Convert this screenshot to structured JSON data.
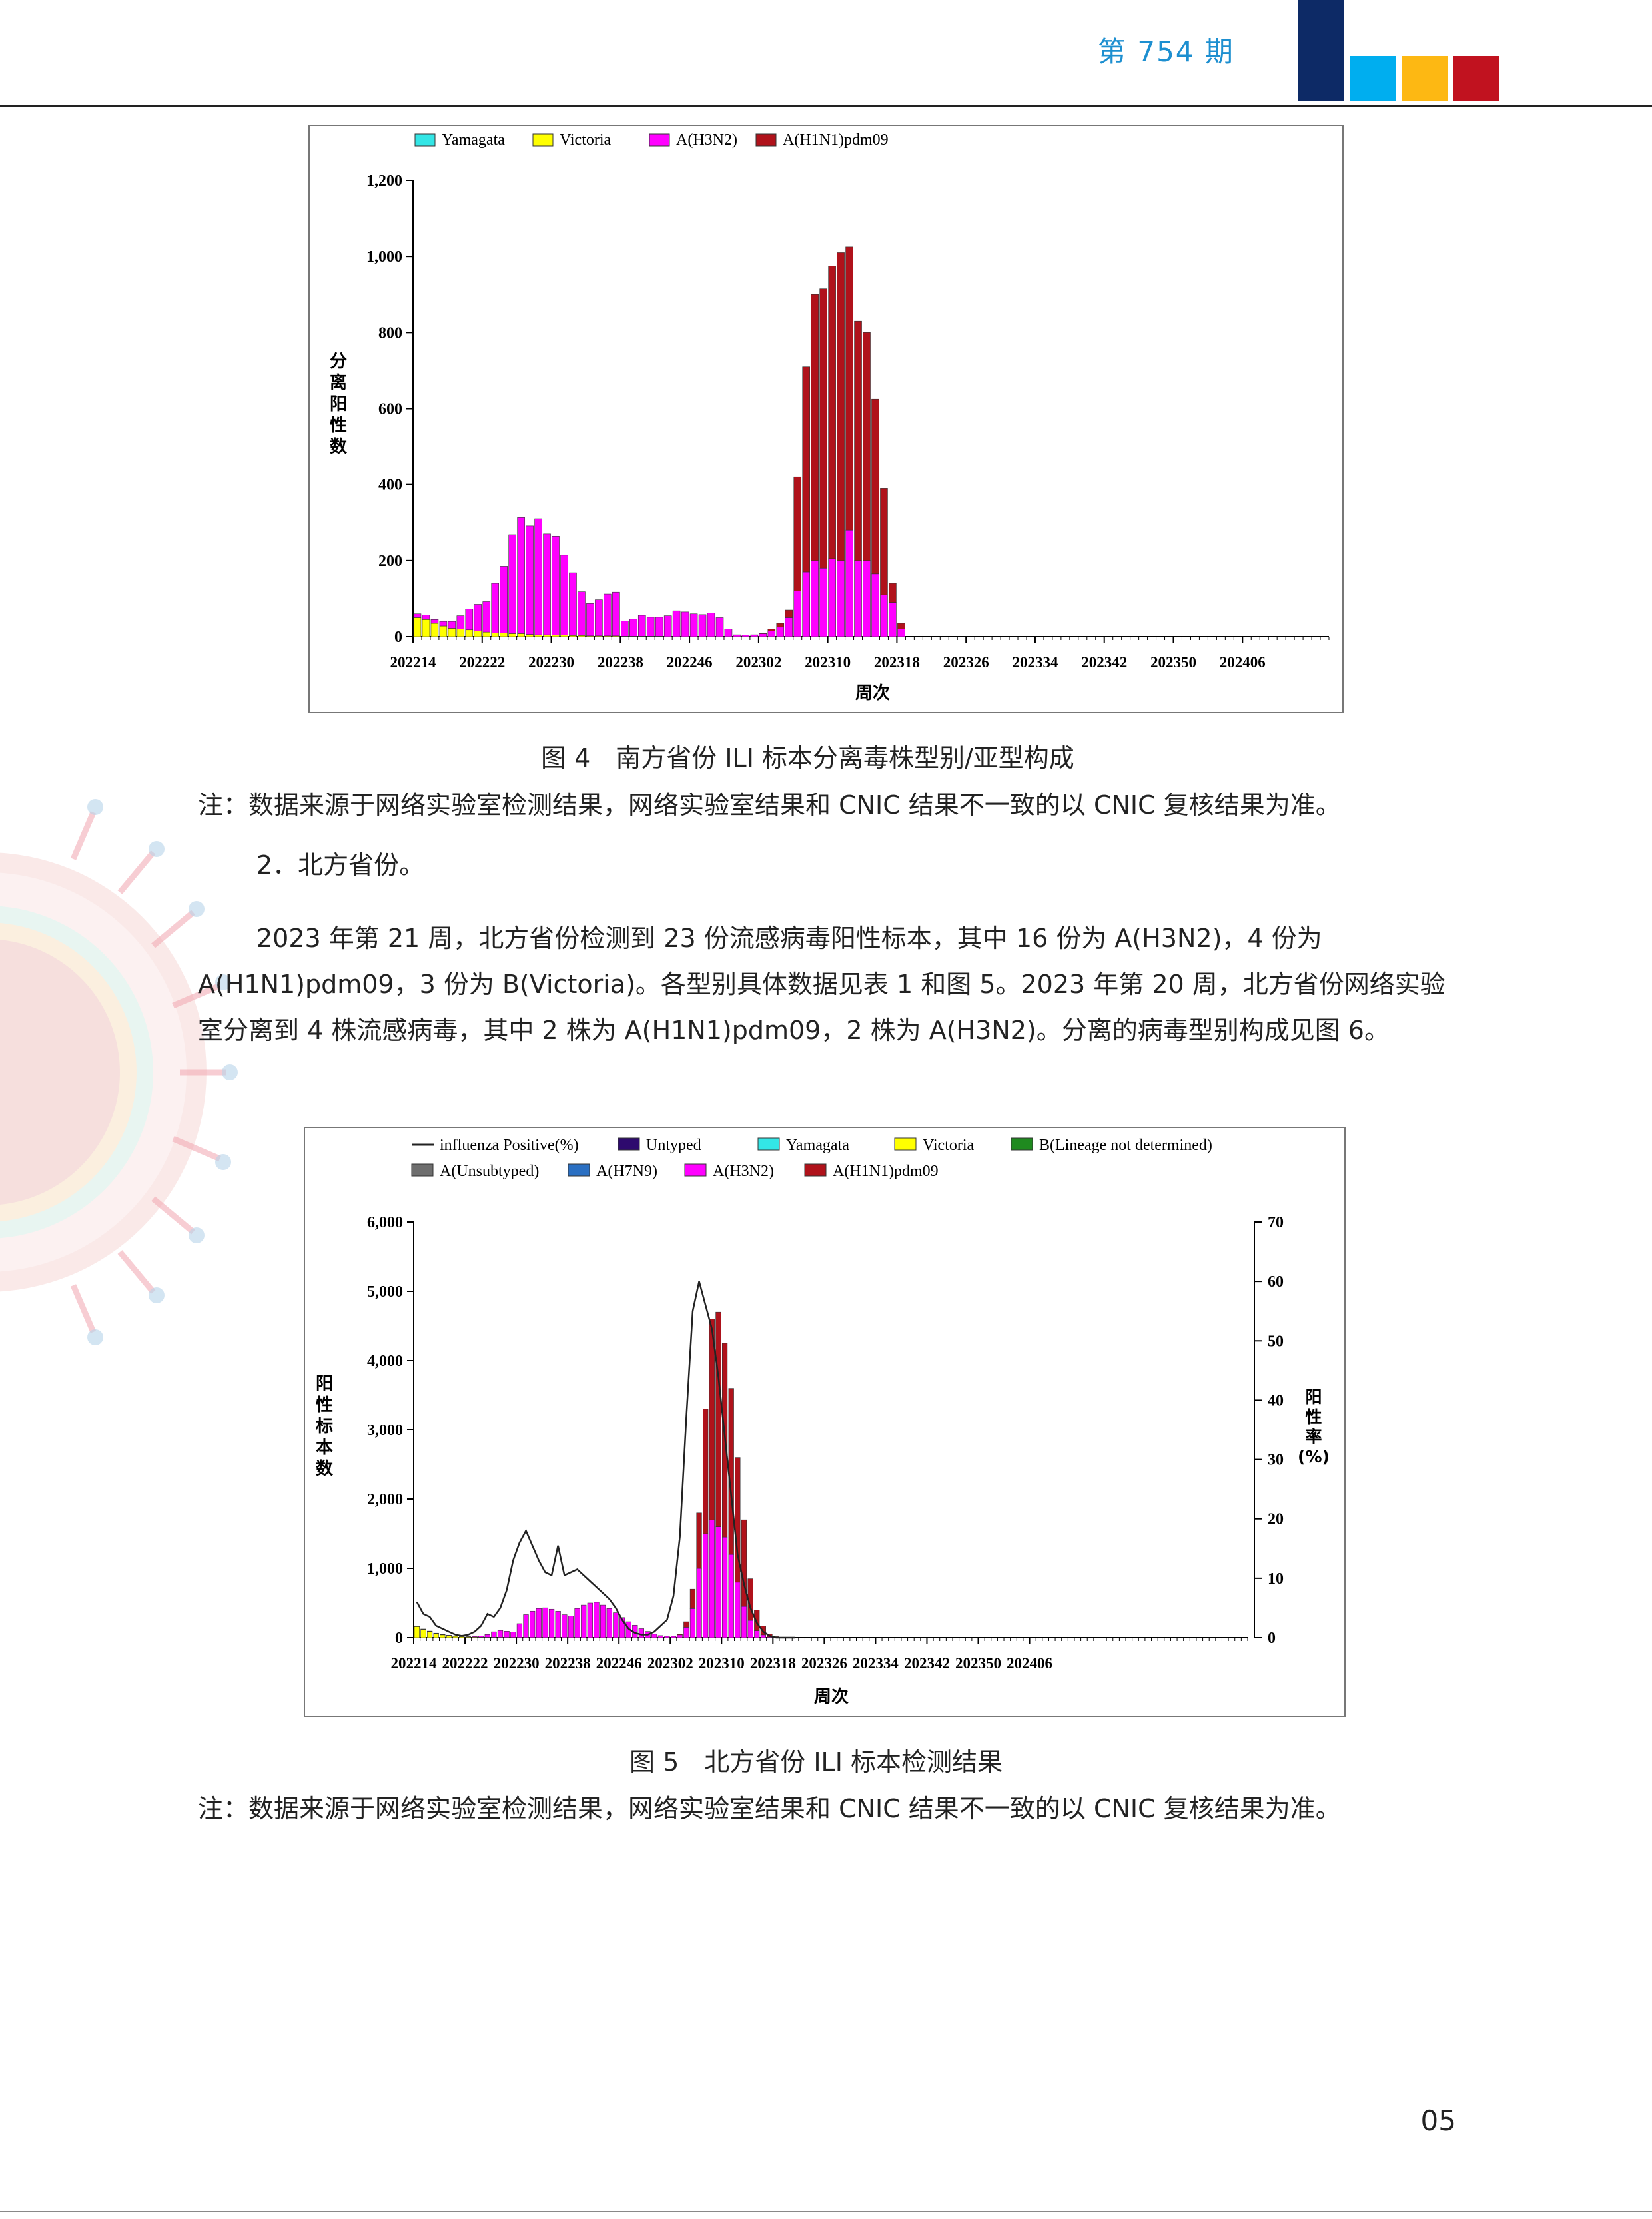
{
  "header": {
    "issue": "第 754 期",
    "colors": [
      "#0d2a66",
      "#00aeef",
      "#fdb813",
      "#c1121f"
    ]
  },
  "figure4": {
    "caption": "图 4　南方省份 ILI 标本分离毒株型别/亚型构成",
    "note": "注：数据来源于网络实验室检测结果，网络实验室结果和 CNIC 结果不一致的以 CNIC 复核结果为准。"
  },
  "section": {
    "heading": "2．北方省份。",
    "paragraph": "2023 年第 21 周，北方省份检测到 23 份流感病毒阳性标本，其中 16 份为 A(H3N2)，4 份为 A(H1N1)pdm09，3 份为 B(Victoria)。各型别具体数据见表 1 和图 5。2023 年第 20 周，北方省份网络实验室分离到 4 株流感病毒，其中 2 株为 A(H1N1)pdm09，2 株为 A(H3N2)。分离的病毒型别构成见图 6。"
  },
  "figure5": {
    "caption": "图 5　北方省份 ILI 标本检测结果",
    "note": "注：数据来源于网络实验室检测结果，网络实验室结果和 CNIC 结果不一致的以 CNIC 复核结果为准。"
  },
  "page_number": "05",
  "chart_data": [
    {
      "type": "bar",
      "stacked": true,
      "xlabel": "周次",
      "ylabel": "分离阳性数",
      "ylim": [
        0,
        1200
      ],
      "yticks": [
        "0",
        "200",
        "400",
        "600",
        "800",
        "1,000",
        "1,200"
      ],
      "xticks": [
        "202214",
        "202222",
        "202230",
        "202238",
        "202246",
        "202302",
        "202310",
        "202318",
        "202326",
        "202334",
        "202342",
        "202350",
        "202406"
      ],
      "legend_position": "top",
      "weeks_count": 52,
      "series": [
        {
          "name": "Yamagata",
          "color": "#33e6e6",
          "values": [
            0,
            0,
            0,
            0,
            0,
            0,
            0,
            0,
            0,
            0,
            0,
            0,
            0,
            0,
            0,
            0,
            0,
            0,
            0,
            0,
            0,
            0,
            0,
            0,
            0,
            0,
            0,
            0,
            0,
            0,
            0,
            0,
            0,
            0,
            0,
            0,
            0,
            0,
            0,
            0,
            0,
            0,
            0,
            0,
            0,
            0,
            0,
            0,
            0,
            0,
            0,
            0
          ]
        },
        {
          "name": "Victoria",
          "color": "#ffff00",
          "values": [
            50,
            45,
            35,
            28,
            22,
            20,
            18,
            15,
            12,
            10,
            10,
            8,
            8,
            6,
            5,
            5,
            4,
            4,
            3,
            3,
            2,
            2,
            2,
            2,
            1,
            1,
            1,
            1,
            1,
            0,
            0,
            0,
            0,
            0,
            0,
            0,
            0,
            0,
            0,
            0,
            0,
            0,
            0,
            0,
            0,
            0,
            0,
            0,
            0,
            0,
            0,
            0
          ]
        },
        {
          "name": "A(H3N2)",
          "color": "#ff00ff",
          "values": [
            10,
            12,
            10,
            12,
            18,
            35,
            55,
            70,
            80,
            130,
            175,
            260,
            305,
            285,
            305,
            265,
            260,
            210,
            165,
            115,
            85,
            95,
            110,
            115,
            40,
            45,
            55,
            50,
            50,
            55,
            68,
            65,
            60,
            58,
            62,
            50,
            20,
            5,
            4,
            5,
            8,
            15,
            25,
            50,
            120,
            170,
            200,
            180,
            205,
            200,
            280,
            200
          ]
        },
        {
          "name": "A(H1N1)pdm09",
          "color": "#b0121b",
          "values": [
            0,
            0,
            0,
            0,
            0,
            0,
            0,
            0,
            0,
            0,
            0,
            0,
            0,
            0,
            0,
            0,
            0,
            0,
            0,
            0,
            0,
            0,
            0,
            0,
            0,
            0,
            0,
            0,
            0,
            0,
            0,
            0,
            0,
            0,
            0,
            0,
            0,
            0,
            0,
            0,
            2,
            5,
            10,
            20,
            300,
            540,
            700,
            735,
            770,
            810,
            745,
            630
          ]
        }
      ],
      "trailing": {
        "weeks": [
          52,
          53,
          54,
          55,
          56
        ],
        "A(H3N2)": [
          200,
          165,
          110,
          90,
          20
        ],
        "A(H1N1)pdm09": [
          600,
          460,
          280,
          50,
          15
        ]
      }
    },
    {
      "type": "bar",
      "stacked": true,
      "secondary_line": true,
      "xlabel": "周次",
      "ylabel": "阳性标本数",
      "y2label": "阳性率(%)",
      "ylim": [
        0,
        6000
      ],
      "y2lim": [
        0,
        70
      ],
      "yticks": [
        "0",
        "1,000",
        "2,000",
        "3,000",
        "4,000",
        "5,000",
        "6,000"
      ],
      "y2ticks": [
        "0",
        "10",
        "20",
        "30",
        "40",
        "50",
        "60",
        "70"
      ],
      "xticks": [
        "202214",
        "202222",
        "202230",
        "202238",
        "202246",
        "202302",
        "202310",
        "202318",
        "202326",
        "202334",
        "202342",
        "202350",
        "202406"
      ],
      "legend_position": "top",
      "legend": [
        {
          "name": "influenza Positive(%)",
          "color": "#222222",
          "kind": "line"
        },
        {
          "name": "Untyped",
          "color": "#2e0a6e"
        },
        {
          "name": "Yamagata",
          "color": "#33e6e6"
        },
        {
          "name": "Victoria",
          "color": "#ffff00"
        },
        {
          "name": "B(Lineage not determined)",
          "color": "#1f8a1f"
        },
        {
          "name": "A(Unsubtyped)",
          "color": "#6e6e6e"
        },
        {
          "name": "A(H7N9)",
          "color": "#2a6fc2"
        },
        {
          "name": "A(H3N2)",
          "color": "#ff00ff"
        },
        {
          "name": "A(H1N1)pdm09",
          "color": "#b0121b"
        }
      ],
      "series": [
        {
          "name": "Victoria",
          "color": "#ffff00",
          "values": [
            160,
            120,
            90,
            60,
            40,
            30,
            20,
            15,
            10,
            8,
            6,
            5,
            5,
            4,
            3,
            3,
            2,
            2,
            2,
            1,
            1,
            1,
            1,
            1,
            1,
            1,
            0,
            0,
            0,
            0,
            0,
            0,
            0,
            0,
            0,
            0,
            0,
            0,
            0,
            0,
            0,
            0,
            0,
            0,
            0,
            0,
            0,
            0,
            0,
            0,
            0,
            0,
            0,
            0,
            0,
            0,
            0,
            0,
            0,
            0
          ]
        },
        {
          "name": "A(H3N2)",
          "color": "#ff00ff",
          "values": [
            5,
            5,
            5,
            5,
            5,
            5,
            5,
            5,
            5,
            10,
            20,
            40,
            80,
            100,
            90,
            80,
            200,
            330,
            380,
            420,
            430,
            410,
            380,
            330,
            310,
            420,
            470,
            500,
            510,
            470,
            420,
            360,
            290,
            230,
            180,
            130,
            90,
            50,
            30,
            20,
            20,
            40,
            150,
            420,
            1000,
            1500,
            1700,
            1600,
            1450,
            1200,
            800,
            450,
            250,
            100,
            40,
            10,
            5,
            0,
            0,
            0
          ]
        },
        {
          "name": "A(H1N1)pdm09",
          "color": "#b0121b",
          "values": [
            0,
            0,
            0,
            0,
            0,
            0,
            0,
            0,
            0,
            0,
            0,
            0,
            0,
            0,
            0,
            0,
            0,
            0,
            0,
            0,
            0,
            0,
            0,
            0,
            0,
            0,
            0,
            0,
            0,
            0,
            0,
            0,
            0,
            0,
            0,
            0,
            0,
            0,
            0,
            0,
            0,
            10,
            80,
            280,
            800,
            1800,
            2900,
            3100,
            2800,
            2400,
            1800,
            1250,
            600,
            300,
            130,
            40,
            10,
            0,
            0,
            0
          ]
        }
      ],
      "positive_rate": [
        6,
        4,
        3.5,
        2,
        1.5,
        1,
        0.5,
        0.3,
        0.5,
        1,
        2,
        4,
        3.5,
        5,
        8,
        13,
        16,
        18,
        15.5,
        13,
        11,
        10.5,
        15.5,
        10.5,
        11,
        11.5,
        10.5,
        9.5,
        8.5,
        7.5,
        6.5,
        5,
        3,
        1.5,
        0.8,
        0.5,
        0.5,
        1,
        2,
        3,
        7,
        17,
        37,
        55,
        60,
        56,
        52,
        44,
        34,
        24,
        14,
        9,
        5,
        2.5,
        1,
        0.3,
        0,
        0,
        0,
        0
      ]
    }
  ]
}
